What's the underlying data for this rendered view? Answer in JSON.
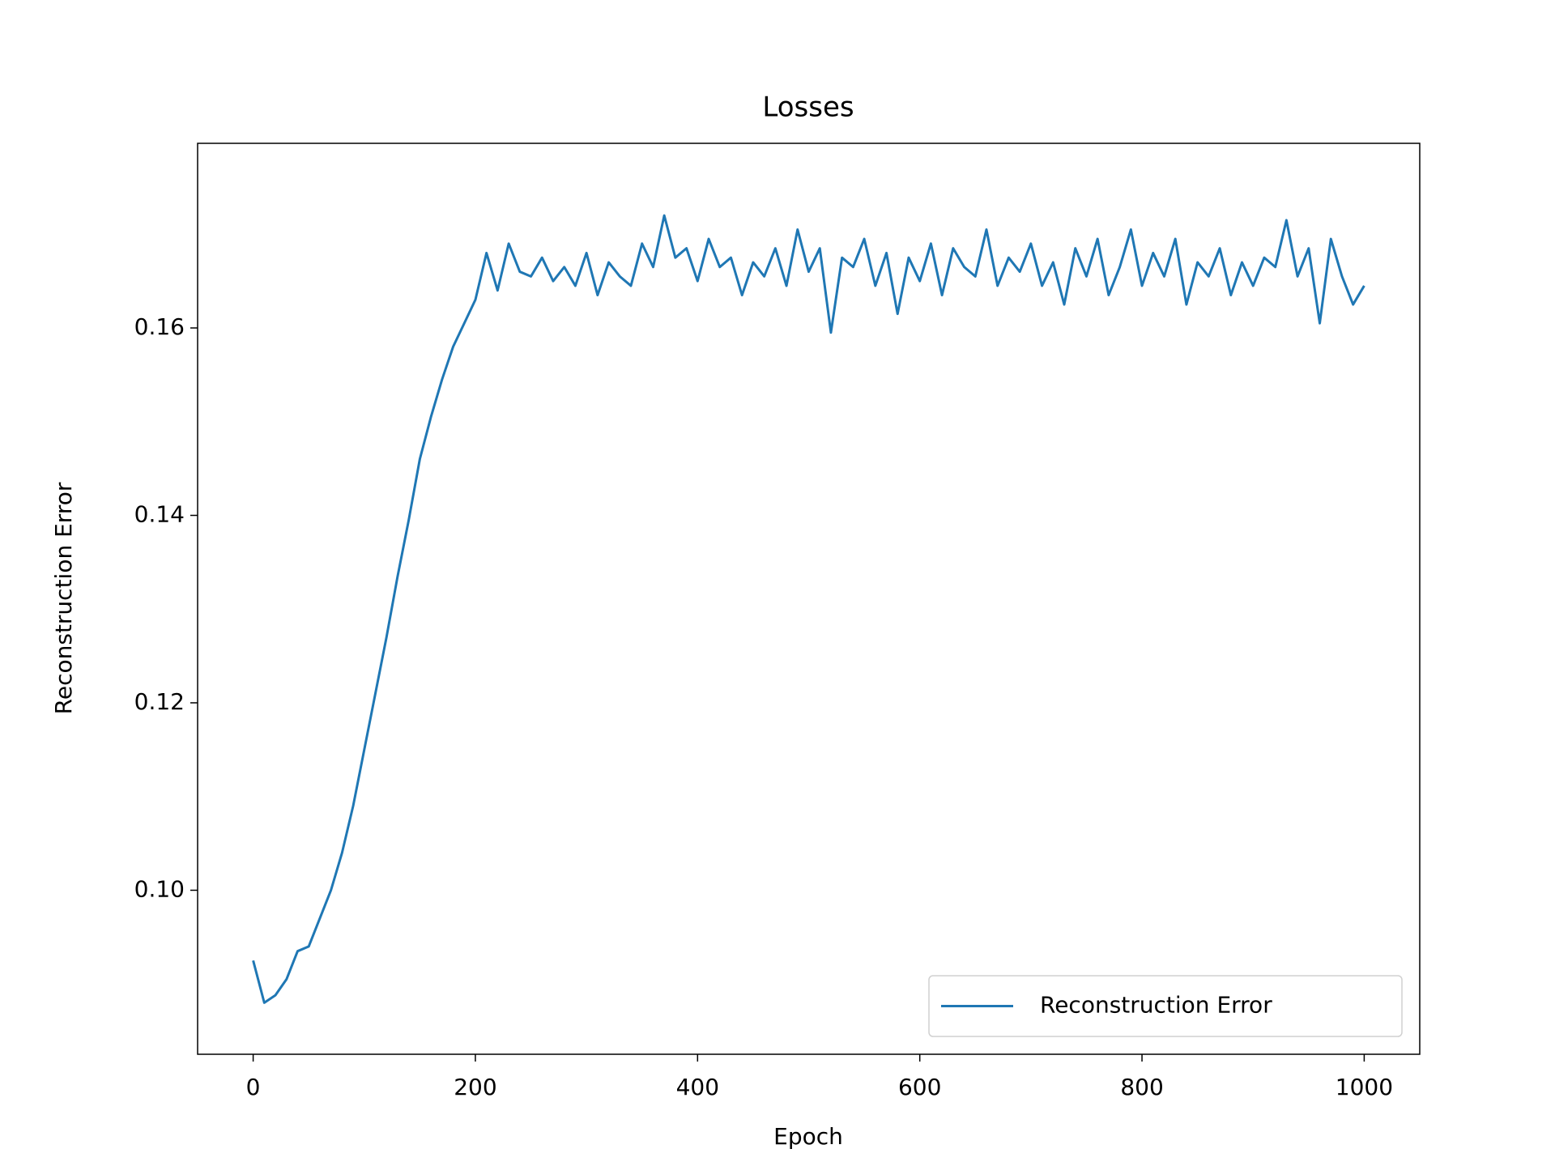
{
  "chart_data": {
    "type": "line",
    "title": "Losses",
    "x_label": "Epoch",
    "y_label": "Reconstruction Error",
    "x": [
      0,
      10,
      20,
      30,
      40,
      50,
      60,
      70,
      80,
      90,
      100,
      110,
      120,
      130,
      140,
      150,
      160,
      170,
      180,
      190,
      200,
      210,
      220,
      230,
      240,
      250,
      260,
      270,
      280,
      290,
      300,
      310,
      320,
      330,
      340,
      350,
      360,
      370,
      380,
      390,
      400,
      410,
      420,
      430,
      440,
      450,
      460,
      470,
      480,
      490,
      500,
      510,
      520,
      530,
      540,
      550,
      560,
      570,
      580,
      590,
      600,
      610,
      620,
      630,
      640,
      650,
      660,
      670,
      680,
      690,
      700,
      710,
      720,
      730,
      740,
      750,
      760,
      770,
      780,
      790,
      800,
      810,
      820,
      830,
      840,
      850,
      860,
      870,
      880,
      890,
      900,
      910,
      920,
      930,
      940,
      950,
      960,
      970,
      980,
      990,
      1000
    ],
    "series": [
      {
        "name": "Reconstruction Error",
        "color": "#1f77b4",
        "values": [
          0.0925,
          0.088,
          0.0888,
          0.0905,
          0.0935,
          0.094,
          0.097,
          0.1,
          0.104,
          0.109,
          0.115,
          0.121,
          0.127,
          0.1335,
          0.1395,
          0.146,
          0.1505,
          0.1545,
          0.158,
          0.1605,
          0.163,
          0.168,
          0.164,
          0.169,
          0.166,
          0.1655,
          0.1675,
          0.165,
          0.1665,
          0.1645,
          0.168,
          0.1635,
          0.167,
          0.1655,
          0.1645,
          0.169,
          0.1665,
          0.172,
          0.1675,
          0.1685,
          0.165,
          0.1695,
          0.1665,
          0.1675,
          0.1635,
          0.167,
          0.1655,
          0.1685,
          0.1645,
          0.1705,
          0.166,
          0.1685,
          0.1595,
          0.1675,
          0.1665,
          0.1695,
          0.1645,
          0.168,
          0.1615,
          0.1675,
          0.165,
          0.169,
          0.1635,
          0.1685,
          0.1665,
          0.1655,
          0.1705,
          0.1645,
          0.1675,
          0.166,
          0.169,
          0.1645,
          0.167,
          0.1625,
          0.1685,
          0.1655,
          0.1695,
          0.1635,
          0.1665,
          0.1705,
          0.1645,
          0.168,
          0.1655,
          0.1695,
          0.1625,
          0.167,
          0.1655,
          0.1685,
          0.1635,
          0.167,
          0.1645,
          0.1675,
          0.1665,
          0.1715,
          0.1655,
          0.1685,
          0.1605,
          0.1695,
          0.1655,
          0.1625,
          0.1645
        ]
      }
    ],
    "xlim": [
      -50,
      1050
    ],
    "ylim": [
      0.0825,
      0.1797
    ],
    "xticks": [
      0,
      200,
      400,
      600,
      800,
      1000
    ],
    "yticks": [
      {
        "value": 0.1,
        "label": "0.10"
      },
      0.12,
      0.14,
      0.16
    ],
    "legend": "lower right"
  }
}
